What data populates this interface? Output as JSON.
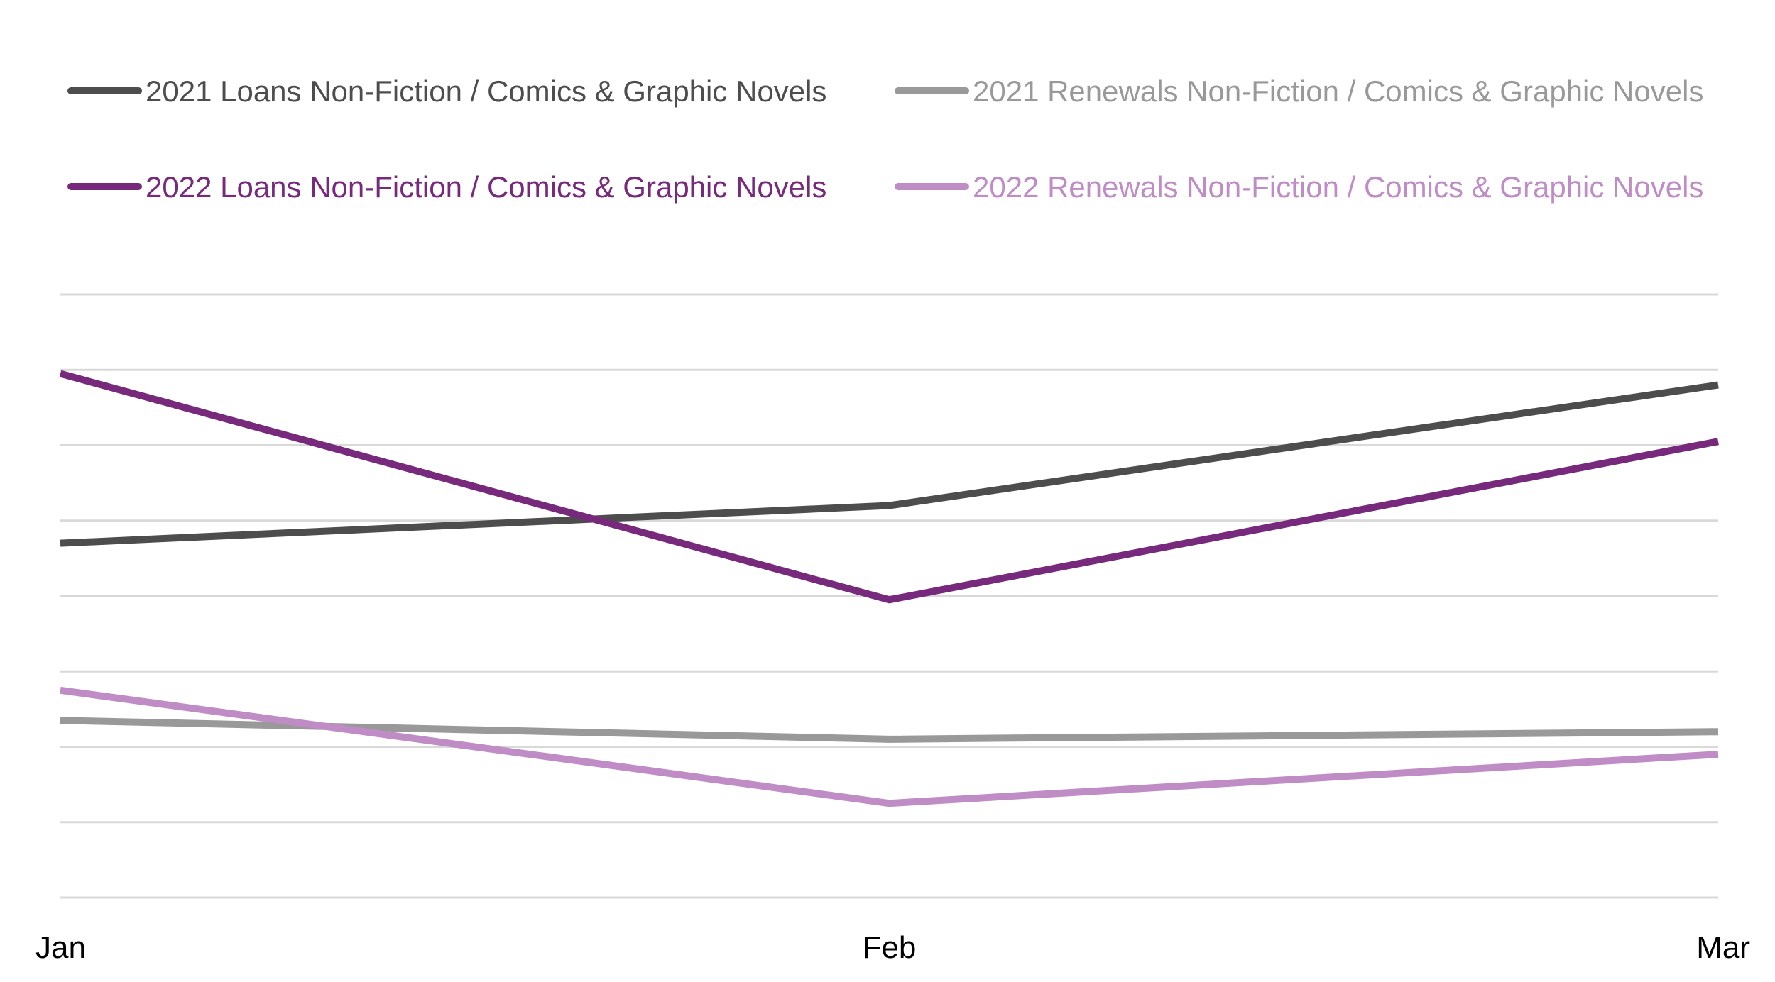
{
  "chart_data": {
    "type": "line",
    "title": "",
    "xlabel": "",
    "ylabel": "",
    "categories": [
      "Jan",
      "Feb",
      "Mar"
    ],
    "ylim": [
      0,
      8
    ],
    "grid": true,
    "y_axis_labels_visible": false,
    "legend_position": "top",
    "series": [
      {
        "name": "2021 Loans Non-Fiction / Comics & Graphic Novels",
        "color": "#4d4d4d",
        "values": [
          4.7,
          5.2,
          6.8
        ]
      },
      {
        "name": "2021 Renewals Non-Fiction / Comics & Graphic Novels",
        "color": "#999999",
        "values": [
          2.35,
          2.1,
          2.2
        ]
      },
      {
        "name": "2022 Loans Non-Fiction / Comics & Graphic Novels",
        "color": "#772a7c",
        "values": [
          6.95,
          3.95,
          6.05
        ]
      },
      {
        "name": "2022 Renewals Non-Fiction / Comics & Graphic Novels",
        "color": "#bf8cc6",
        "values": [
          2.75,
          1.25,
          1.9
        ]
      }
    ]
  }
}
